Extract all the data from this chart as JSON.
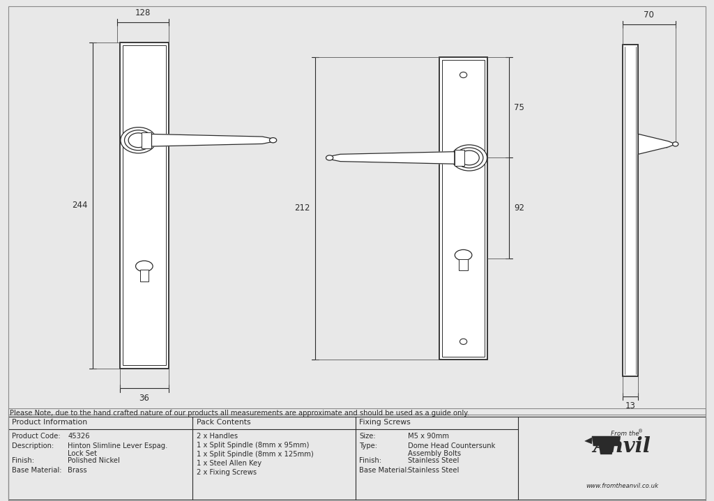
{
  "bg_color": "#e8e8e8",
  "drawing_bg": "#ffffff",
  "line_color": "#2a2a2a",
  "note_text": "Please Note, due to the hand crafted nature of our products all measurements are approximate and should be used as a guide only.",
  "table": {
    "product_info_header": "Product Information",
    "pack_contents_header": "Pack Contents",
    "fixing_screws_header": "Fixing Screws",
    "product_code_label": "Product Code:",
    "product_code_value": "45326",
    "description_label": "Description:",
    "description_line1": "Hinton Slimline Lever Espag.",
    "description_line2": "Lock Set",
    "finish_label": "Finish:",
    "finish_value": "Polished Nickel",
    "base_material_label": "Base Material:",
    "base_material_value": "Brass",
    "pack_items": [
      "2 x Handles",
      "1 x Split Spindle (8mm x 95mm)",
      "1 x Split Spindle (8mm x 125mm)",
      "1 x Steel Allen Key",
      "2 x Fixing Screws"
    ],
    "size_label": "Size:",
    "size_value": "M5 x 90mm",
    "type_label": "Type:",
    "type_line1": "Dome Head Countersunk",
    "type_line2": "Assembly Bolts",
    "finish_screw_label": "Finish:",
    "finish_screw_value": "Stainless Steel",
    "base_material_screw_label": "Base Material:",
    "base_material_screw_value": "Stainless Steel"
  }
}
